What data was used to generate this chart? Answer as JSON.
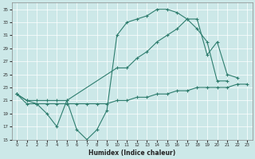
{
  "xlabel": "Humidex (Indice chaleur)",
  "bg_color": "#cce8e8",
  "line_color": "#2e7d6e",
  "xlim": [
    -0.5,
    23.5
  ],
  "ylim": [
    15,
    36
  ],
  "xticks": [
    0,
    1,
    2,
    3,
    4,
    5,
    6,
    7,
    8,
    9,
    10,
    11,
    12,
    13,
    14,
    15,
    16,
    17,
    18,
    19,
    20,
    21,
    22,
    23
  ],
  "yticks": [
    15,
    17,
    19,
    21,
    23,
    25,
    27,
    29,
    31,
    33,
    35
  ],
  "line1_x": [
    0,
    1,
    2,
    3,
    4,
    5,
    6,
    7,
    8,
    9,
    10,
    11,
    12,
    13,
    14,
    15,
    16,
    17,
    18,
    19,
    20,
    21
  ],
  "line1_y": [
    22,
    21,
    20.5,
    19,
    17,
    21,
    16.5,
    15,
    16.5,
    19.5,
    31,
    33,
    33.5,
    34,
    35,
    35,
    34.5,
    33.5,
    32,
    30,
    24,
    24
  ],
  "line2_x": [
    0,
    1,
    2,
    3,
    4,
    5,
    6,
    7,
    8,
    9,
    10,
    11,
    12,
    13,
    14,
    15,
    16,
    17,
    18,
    19,
    20,
    21,
    22,
    23
  ],
  "line2_y": [
    22,
    20.5,
    20.5,
    20.5,
    20.5,
    20.5,
    20.5,
    20.5,
    20.5,
    20.5,
    21,
    21,
    21.5,
    21.5,
    22,
    22,
    22.5,
    22.5,
    23,
    23,
    23,
    23,
    23.5,
    23.5
  ],
  "line3_x": [
    0,
    1,
    2,
    3,
    4,
    5,
    10,
    11,
    12,
    13,
    14,
    15,
    16,
    17,
    18,
    19,
    20,
    21,
    22
  ],
  "line3_y": [
    22,
    21,
    21,
    21,
    21,
    21,
    26,
    26,
    27.5,
    28.5,
    30,
    31,
    32,
    33.5,
    33.5,
    28,
    30,
    25,
    24.5
  ]
}
